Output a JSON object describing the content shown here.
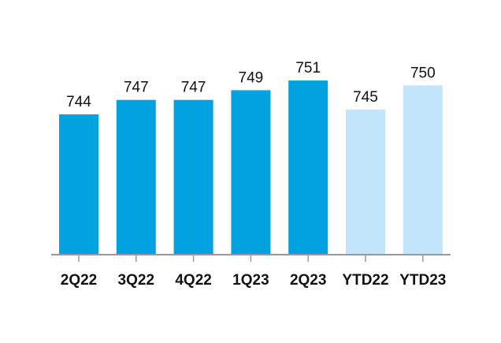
{
  "chart_data": {
    "type": "bar",
    "categories": [
      "2Q22",
      "3Q22",
      "4Q22",
      "1Q23",
      "2Q23",
      "YTD22",
      "YTD23"
    ],
    "values": [
      744,
      747,
      747,
      749,
      751,
      745,
      750
    ],
    "bar_colors": [
      "#00a3e0",
      "#00a3e0",
      "#00a3e0",
      "#00a3e0",
      "#00a3e0",
      "#c1e4fb",
      "#c1e4fb"
    ],
    "axis_color": "#999999",
    "title": "",
    "xlabel": "",
    "ylabel": "",
    "ylim": [
      715,
      752
    ],
    "grid": false,
    "legend": "none"
  }
}
